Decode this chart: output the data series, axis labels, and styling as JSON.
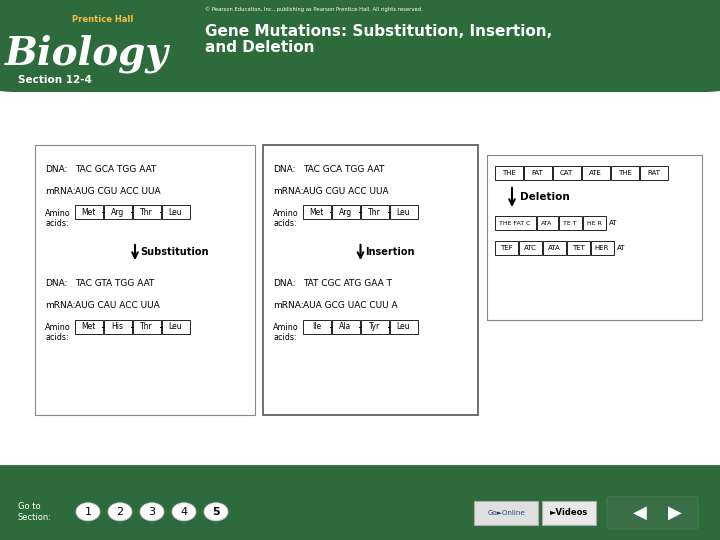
{
  "title_line1": "Gene Mutations: Substitution, Insertion,",
  "title_line2": "and Deletion",
  "subtitle": "Section 12-4",
  "prentice_hall": "Prentice Hall",
  "biology": "Biology",
  "copyright": "© Pearson Education, Inc., publishing as Pearson Prentice Hall. All rights reserved.",
  "header_bg": "#2e6b3c",
  "white": "#ffffff",
  "light_gray": "#dddddd",
  "dark_gray": "#555555",
  "footer_bg": "#2e6b3c",
  "title_color": "#ffffff",
  "yellow": "#f0c040",
  "nav_numbers": [
    "1",
    "2",
    "3",
    "4",
    "5"
  ],
  "substitution": {
    "label": "Substitution",
    "orig_dna": "TAC GCA TGG AAT",
    "orig_mrna": "AUG CGU ACC UUA",
    "orig_aa": [
      "Met",
      "Arg",
      "Thr",
      "Leu"
    ],
    "mut_dna": "TAC GTA TGG AAT",
    "mut_mrna": "AUG CAU ACC UUA",
    "mut_aa": [
      "Met",
      "His",
      "Thr",
      "Leu"
    ]
  },
  "insertion": {
    "label": "Insertion",
    "orig_dna": "TAC GCA TGG AAT",
    "orig_mrna": "AUG CGU ACC UUA",
    "orig_aa": [
      "Met",
      "Arg",
      "Thr",
      "Leu"
    ],
    "mut_dna": "TAT CGC ATG GAA T",
    "mut_mrna": "AUA GCG UAC CUU A",
    "mut_aa": [
      "Ile",
      "Ala",
      "Tyr",
      "Leu"
    ]
  },
  "deletion": {
    "label": "Deletion",
    "orig_row": [
      "THE",
      "FAT",
      "CAT",
      "ATE",
      "THE",
      "RAT"
    ],
    "mut_row1": [
      "THE FAT C",
      "ATA",
      "TE T",
      "HE R"
    ],
    "mut_row1_suffix": "AT",
    "mut_row2": [
      "TEF",
      "ATC",
      "ATA",
      "TET",
      "HER"
    ],
    "mut_row2_suffix": "AT"
  }
}
